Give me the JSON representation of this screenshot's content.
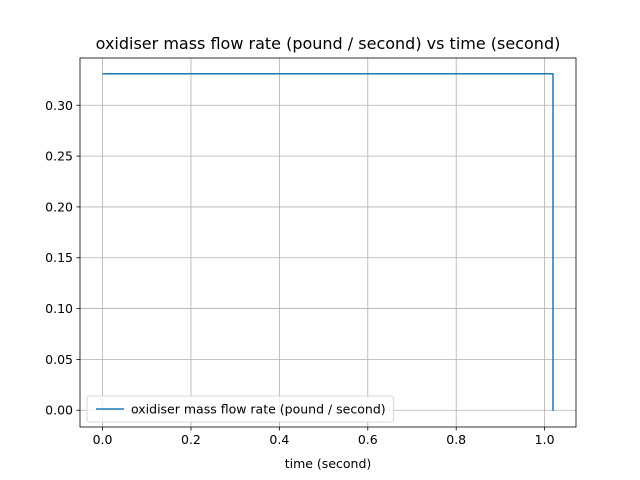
{
  "chart_data": {
    "type": "line",
    "title": "oxidiser mass flow rate (pound / second) vs time (second)",
    "xlabel": "time (second)",
    "ylabel": "",
    "xlim": [
      -0.051,
      1.071
    ],
    "ylim": [
      -0.0165,
      0.3465
    ],
    "xticks": [
      0.0,
      0.2,
      0.4,
      0.6,
      0.8,
      1.0
    ],
    "xtick_labels": [
      "0.0",
      "0.2",
      "0.4",
      "0.6",
      "0.8",
      "1.0"
    ],
    "yticks": [
      0.0,
      0.05,
      0.1,
      0.15,
      0.2,
      0.25,
      0.3
    ],
    "ytick_labels": [
      "0.00",
      "0.05",
      "0.10",
      "0.15",
      "0.20",
      "0.25",
      "0.30"
    ],
    "grid": true,
    "legend_position": "lower-left",
    "series": [
      {
        "name": "oxidiser mass flow rate (pound / second)",
        "color": "#1f77b4",
        "x": [
          0.0,
          1.0,
          1.017,
          1.019,
          1.019,
          1.02
        ],
        "y": [
          0.331,
          0.331,
          0.331,
          0.331,
          0.0,
          0.0
        ]
      }
    ]
  }
}
